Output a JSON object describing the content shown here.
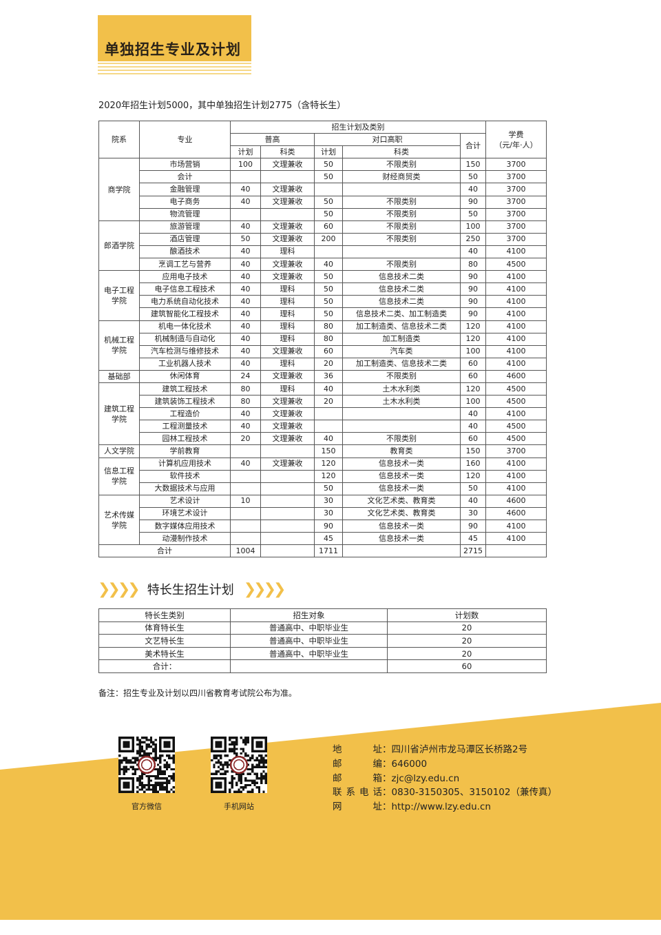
{
  "title": "单独招生专业及计划",
  "intro": "2020年招生计划5000，其中单独招生计划2775（含特长生）",
  "main_table": {
    "headers": {
      "dept": "院系",
      "major": "专业",
      "plan_group": "招生计划及类别",
      "general": "普高",
      "vocational": "对口高职",
      "plan": "计划",
      "type": "科类",
      "total": "合计",
      "fee": "学费\n（元/年·人）"
    },
    "groups": [
      {
        "dept": "商学院",
        "rows": [
          [
            "市场营销",
            "100",
            "文理兼收",
            "50",
            "不限类别",
            "150",
            "3700"
          ],
          [
            "会计",
            "",
            "",
            "50",
            "财经商贸类",
            "50",
            "3700"
          ],
          [
            "金融管理",
            "40",
            "文理兼收",
            "",
            "",
            "40",
            "3700"
          ],
          [
            "电子商务",
            "40",
            "文理兼收",
            "50",
            "不限类别",
            "90",
            "3700"
          ],
          [
            "物流管理",
            "",
            "",
            "50",
            "不限类别",
            "50",
            "3700"
          ]
        ]
      },
      {
        "dept": "郎酒学院",
        "rows": [
          [
            "旅游管理",
            "40",
            "文理兼收",
            "60",
            "不限类别",
            "100",
            "3700"
          ],
          [
            "酒店管理",
            "50",
            "文理兼收",
            "200",
            "不限类别",
            "250",
            "3700"
          ],
          [
            "酿酒技术",
            "40",
            "理科",
            "",
            "",
            "40",
            "4100"
          ],
          [
            "烹调工艺与营养",
            "40",
            "文理兼收",
            "40",
            "不限类别",
            "80",
            "4500"
          ]
        ]
      },
      {
        "dept": "电子工程\n学院",
        "rows": [
          [
            "应用电子技术",
            "40",
            "文理兼收",
            "50",
            "信息技术二类",
            "90",
            "4100"
          ],
          [
            "电子信息工程技术",
            "40",
            "理科",
            "50",
            "信息技术二类",
            "90",
            "4100"
          ],
          [
            "电力系统自动化技术",
            "40",
            "理科",
            "50",
            "信息技术二类",
            "90",
            "4100"
          ],
          [
            "建筑智能化工程技术",
            "40",
            "理科",
            "50",
            "信息技术二类、加工制造类",
            "90",
            "4100"
          ]
        ]
      },
      {
        "dept": "机械工程\n学院",
        "rows": [
          [
            "机电一体化技术",
            "40",
            "理科",
            "80",
            "加工制造类、信息技术二类",
            "120",
            "4100"
          ],
          [
            "机械制造与自动化",
            "40",
            "理科",
            "80",
            "加工制造类",
            "120",
            "4100"
          ],
          [
            "汽车检测与维修技术",
            "40",
            "文理兼收",
            "60",
            "汽车类",
            "100",
            "4100"
          ],
          [
            "工业机器人技术",
            "40",
            "理科",
            "20",
            "加工制造类、信息技术二类",
            "60",
            "4100"
          ]
        ]
      },
      {
        "dept": "基础部",
        "rows": [
          [
            "休闲体育",
            "24",
            "文理兼收",
            "36",
            "不限类别",
            "60",
            "4600"
          ]
        ]
      },
      {
        "dept": "建筑工程\n学院",
        "rows": [
          [
            "建筑工程技术",
            "80",
            "理科",
            "40",
            "土木水利类",
            "120",
            "4500"
          ],
          [
            "建筑装饰工程技术",
            "80",
            "文理兼收",
            "20",
            "土木水利类",
            "100",
            "4500"
          ],
          [
            "工程造价",
            "40",
            "文理兼收",
            "",
            "",
            "40",
            "4100"
          ],
          [
            "工程测量技术",
            "40",
            "文理兼收",
            "",
            "",
            "40",
            "4500"
          ],
          [
            "园林工程技术",
            "20",
            "文理兼收",
            "40",
            "不限类别",
            "60",
            "4500"
          ]
        ]
      },
      {
        "dept": "人文学院",
        "rows": [
          [
            "学前教育",
            "",
            "",
            "150",
            "教育类",
            "150",
            "3700"
          ]
        ]
      },
      {
        "dept": "信息工程\n学院",
        "rows": [
          [
            "计算机应用技术",
            "40",
            "文理兼收",
            "120",
            "信息技术一类",
            "160",
            "4100"
          ],
          [
            "软件技术",
            "",
            "",
            "120",
            "信息技术一类",
            "120",
            "4100"
          ],
          [
            "大数据技术与应用",
            "",
            "",
            "50",
            "信息技术一类",
            "50",
            "4100"
          ]
        ]
      },
      {
        "dept": "艺术传媒\n学院",
        "rows": [
          [
            "艺术设计",
            "10",
            "",
            "30",
            "文化艺术类、教育类",
            "40",
            "4600"
          ],
          [
            "环境艺术设计",
            "",
            "",
            "30",
            "文化艺术类、教育类",
            "30",
            "4600"
          ],
          [
            "数字媒体应用技术",
            "",
            "",
            "90",
            "信息技术一类",
            "90",
            "4100"
          ],
          [
            "动漫制作技术",
            "",
            "",
            "45",
            "信息技术一类",
            "45",
            "4100"
          ]
        ]
      }
    ],
    "total": {
      "label": "合计",
      "general_plan": "1004",
      "vocational_plan": "1711",
      "total": "2715"
    }
  },
  "special": {
    "title": "特长生招生计划",
    "headers": [
      "特长生类别",
      "招生对象",
      "计划数"
    ],
    "rows": [
      [
        "体育特长生",
        "普通高中、中职毕业生",
        "20"
      ],
      [
        "文艺特长生",
        "普通高中、中职毕业生",
        "20"
      ],
      [
        "美术特长生",
        "普通高中、中职毕业生",
        "20"
      ]
    ],
    "total_label": "合计：",
    "total": "60"
  },
  "note": "备注：招生专业及计划以四川省教育考试院公布为准。",
  "qr": [
    {
      "label": "官方微信"
    },
    {
      "label": "手机网站"
    }
  ],
  "contact": [
    {
      "key": "地　　址",
      "value": "：四川省泸州市龙马潭区长桥路2号"
    },
    {
      "key": "邮　　编",
      "value": "：646000"
    },
    {
      "key": "邮　　箱",
      "value": "：zjc@lzy.edu.cn"
    },
    {
      "key": "联系电话",
      "value": "：0830-3150305、3150102（兼传真）"
    },
    {
      "key": "网　　址",
      "value": "：http://www.lzy.edu.cn"
    }
  ],
  "colors": {
    "accent": "#f2c04a"
  }
}
